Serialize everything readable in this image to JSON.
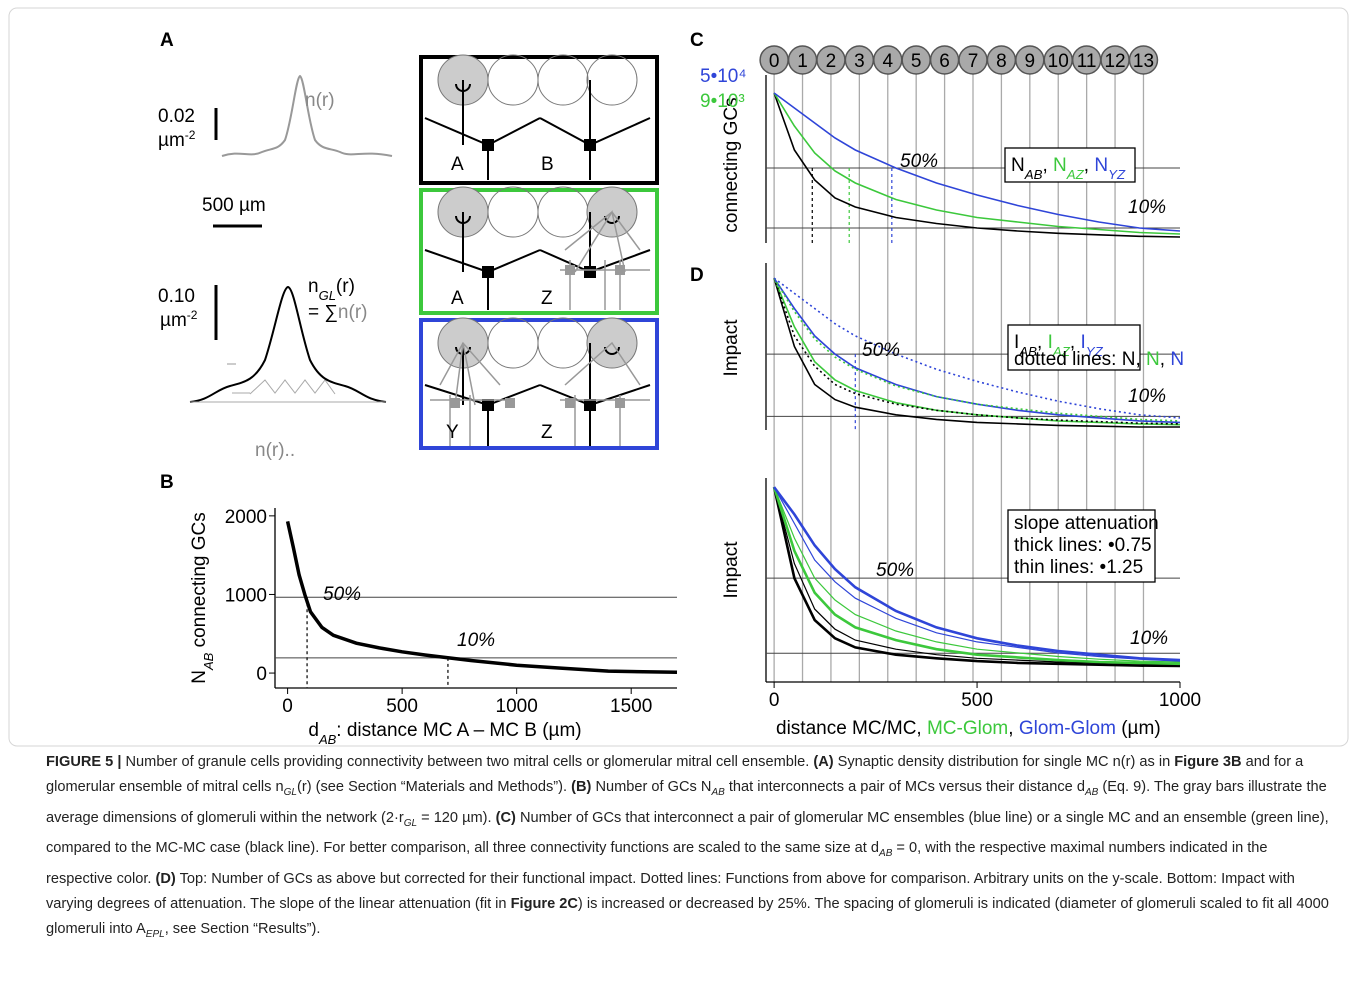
{
  "panel_a": {
    "label": "A",
    "scale_y1": "0.02",
    "unit1": "µm",
    "unit1_exp": "-2",
    "curve1": "n(r)",
    "scale_x": "500 µm",
    "scale_y2": "0.10",
    "unit2": "µm",
    "unit2_exp": "-2",
    "sum_lhs": "n",
    "sum_lhs_sub": "GL",
    "sum_lhs_end": "(r)",
    "sum_eq": "= ∑",
    "sum_rhs": "n(r)",
    "curve2": "n(r)..",
    "cells": [
      [
        "A",
        "B"
      ],
      [
        "A",
        "Z"
      ],
      [
        "Y",
        "Z"
      ]
    ]
  },
  "chart_data": [
    {
      "type": "line",
      "panel": "B",
      "x": [
        0,
        25,
        50,
        75,
        100,
        150,
        200,
        300,
        400,
        500,
        600,
        700,
        800,
        1000,
        1200,
        1400,
        1700
      ],
      "values": [
        1930,
        1600,
        1250,
        1000,
        780,
        580,
        480,
        380,
        320,
        270,
        230,
        195,
        160,
        100,
        60,
        25,
        10
      ],
      "color": "#000000",
      "width": 3.5,
      "xlim": [
        -55,
        1700
      ],
      "ylim": [
        -190,
        2100
      ],
      "xticks": [
        0,
        500,
        1000,
        1500
      ],
      "yticks": [
        0,
        1000,
        2000
      ],
      "ylabel": [
        {
          "text": "N"
        },
        {
          "text": "AB",
          "sub": true
        },
        {
          "text": " connecting GCs"
        }
      ],
      "xlabel": [
        {
          "text": "d"
        },
        {
          "text": "AB",
          "sub": true
        },
        {
          "text": ": distance MC A – MC B (µm)"
        }
      ],
      "annotations": [
        "50%",
        "10%"
      ],
      "hlines": [
        965,
        193
      ],
      "vlines": [
        85,
        700
      ],
      "vline_colors": [
        "#000000",
        "#000000"
      ]
    },
    {
      "type": "line",
      "panel": "C",
      "x": [
        0,
        50,
        100,
        150,
        200,
        300,
        400,
        500,
        600,
        700,
        800,
        900,
        1000
      ],
      "series": [
        {
          "name": "N",
          "sub": "AB",
          "color": "#000000",
          "values": [
            1,
            0.62,
            0.42,
            0.3,
            0.24,
            0.17,
            0.13,
            0.1,
            0.08,
            0.065,
            0.055,
            0.045,
            0.04
          ]
        },
        {
          "name": "N",
          "sub": "AZ",
          "color": "#3cc83c",
          "max_label": "9•10³",
          "values": [
            1,
            0.78,
            0.6,
            0.48,
            0.4,
            0.29,
            0.22,
            0.17,
            0.14,
            0.11,
            0.09,
            0.07,
            0.06
          ]
        },
        {
          "name": "N",
          "sub": "YZ",
          "color": "#2f45d8",
          "max_label": "5•10⁴",
          "values": [
            1,
            0.9,
            0.8,
            0.7,
            0.62,
            0.5,
            0.4,
            0.32,
            0.25,
            0.19,
            0.14,
            0.1,
            0.08
          ]
        }
      ],
      "legend_sep": ", ",
      "legend": "right",
      "xlim": [
        -20,
        1000
      ],
      "ylim": [
        0,
        1.12
      ],
      "ylabel": [
        {
          "text": "connecting GCs"
        }
      ],
      "annotations": [
        "50%",
        "10%"
      ],
      "hlines": [
        0.5,
        0.1
      ],
      "vlines": [
        94,
        185,
        290
      ],
      "vline_colors": [
        "#000000",
        "#3cc83c",
        "#2f45d8"
      ],
      "glomeruli": [
        0,
        1,
        2,
        3,
        4,
        5,
        6,
        7,
        8,
        9,
        10,
        11,
        12,
        13
      ],
      "glomerulus_spacing": 70
    },
    {
      "type": "line",
      "panel": "D",
      "x": [
        0,
        50,
        100,
        150,
        200,
        300,
        400,
        500,
        600,
        700,
        800,
        900,
        1000
      ],
      "series": [
        {
          "name": "I",
          "sub": "AB",
          "color": "#000000",
          "values": [
            1,
            0.55,
            0.3,
            0.2,
            0.15,
            0.1,
            0.07,
            0.05,
            0.04,
            0.03,
            0.025,
            0.02,
            0.02
          ]
        },
        {
          "name": "I",
          "sub": "AZ",
          "color": "#3cc83c",
          "values": [
            1,
            0.68,
            0.45,
            0.33,
            0.26,
            0.18,
            0.13,
            0.1,
            0.08,
            0.06,
            0.05,
            0.04,
            0.035
          ]
        },
        {
          "name": "I",
          "sub": "YZ",
          "color": "#2f45d8",
          "values": [
            1,
            0.8,
            0.62,
            0.5,
            0.41,
            0.3,
            0.22,
            0.17,
            0.13,
            0.1,
            0.08,
            0.06,
            0.05
          ]
        },
        {
          "name": "N",
          "color": "#000000",
          "dash": true,
          "values": [
            1,
            0.62,
            0.42,
            0.3,
            0.24,
            0.17,
            0.13,
            0.1,
            0.08,
            0.065,
            0.055,
            0.045,
            0.04
          ]
        },
        {
          "name": "N",
          "color": "#3cc83c",
          "dash": true,
          "values": [
            1,
            0.78,
            0.6,
            0.48,
            0.4,
            0.29,
            0.22,
            0.17,
            0.14,
            0.11,
            0.09,
            0.07,
            0.06
          ]
        },
        {
          "name": "N",
          "color": "#2f45d8",
          "dash": true,
          "values": [
            1,
            0.9,
            0.8,
            0.7,
            0.62,
            0.5,
            0.4,
            0.32,
            0.25,
            0.19,
            0.14,
            0.1,
            0.08
          ]
        }
      ],
      "legend_sep": ", ",
      "legend_note": "dotted lines: ",
      "legend": "right",
      "xlim": [
        -20,
        1000
      ],
      "ylim": [
        0,
        1.1
      ],
      "ylabel": [
        {
          "text": "Impact"
        }
      ],
      "annotations": [
        "50%",
        "10%"
      ],
      "hlines": [
        0.5,
        0.09
      ],
      "vlines": [
        200
      ],
      "vline_colors": [
        "#2f45d8"
      ]
    },
    {
      "type": "line",
      "x": [
        0,
        50,
        100,
        150,
        200,
        300,
        400,
        500,
        600,
        700,
        800,
        900,
        1000
      ],
      "series": [
        {
          "color": "#000000",
          "width": 2.6,
          "values": [
            1,
            0.5,
            0.27,
            0.17,
            0.12,
            0.08,
            0.06,
            0.045,
            0.035,
            0.03,
            0.025,
            0.02,
            0.018
          ]
        },
        {
          "color": "#000000",
          "width": 1.2,
          "values": [
            1,
            0.58,
            0.33,
            0.22,
            0.16,
            0.11,
            0.08,
            0.06,
            0.05,
            0.04,
            0.035,
            0.03,
            0.025
          ]
        },
        {
          "color": "#3cc83c",
          "width": 2.6,
          "values": [
            1,
            0.65,
            0.42,
            0.3,
            0.23,
            0.16,
            0.11,
            0.08,
            0.065,
            0.05,
            0.04,
            0.035,
            0.03
          ]
        },
        {
          "color": "#3cc83c",
          "width": 1.2,
          "values": [
            1,
            0.72,
            0.5,
            0.38,
            0.3,
            0.21,
            0.15,
            0.11,
            0.09,
            0.07,
            0.055,
            0.045,
            0.04
          ]
        },
        {
          "color": "#2f45d8",
          "width": 2.6,
          "values": [
            1,
            0.85,
            0.68,
            0.55,
            0.45,
            0.32,
            0.23,
            0.17,
            0.13,
            0.1,
            0.08,
            0.06,
            0.05
          ]
        },
        {
          "color": "#2f45d8",
          "width": 1.2,
          "values": [
            1,
            0.8,
            0.6,
            0.48,
            0.39,
            0.28,
            0.2,
            0.15,
            0.12,
            0.09,
            0.07,
            0.055,
            0.045
          ]
        }
      ],
      "legend_lines": [
        "slope attenuation",
        "thick lines: •0.75",
        "thin lines: •1.25"
      ],
      "legend": "right",
      "xlim": [
        -20,
        1000
      ],
      "ylim": [
        -0.07,
        1.05
      ],
      "xticks": [
        0,
        500,
        1000
      ],
      "ylabel": [
        {
          "text": "Impact"
        }
      ],
      "xlabel": [
        {
          "text": "distance MC/MC, ",
          "color": "#000000"
        },
        {
          "text": "MC-Glom",
          "color": "#3cc83c"
        },
        {
          "text": ", ",
          "color": "#000000"
        },
        {
          "text": "Glom-Glom",
          "color": "#2f45d8"
        },
        {
          "text": " (µm)",
          "color": "#000000"
        }
      ],
      "annotations": [
        "50%",
        "10%"
      ],
      "hlines": [
        0.5,
        0.088
      ]
    }
  ],
  "caption": [
    {
      "text": "FIGURE 5 |",
      "bold": true
    },
    {
      "text": " Number of granule cells providing connectivity between two mitral cells or glomerular mitral cell ensemble. "
    },
    {
      "text": "(A)",
      "bold": true
    },
    {
      "text": " Synaptic density distribution for single MC n(r) as in "
    },
    {
      "text": "Figure 3B",
      "bold": true
    },
    {
      "text": " and for a glomerular ensemble of mitral cells n"
    },
    {
      "text": "GL",
      "sub": true
    },
    {
      "text": "(r) (see Section “Materials and Methods”). "
    },
    {
      "text": "(B)",
      "bold": true
    },
    {
      "text": " Number of GCs N"
    },
    {
      "text": "AB",
      "sub": true
    },
    {
      "text": " that interconnects a pair of MCs versus their distance d"
    },
    {
      "text": "AB",
      "sub": true
    },
    {
      "text": " (Eq. 9). The gray bars illustrate the average dimensions of glomeruli within the network (2·r"
    },
    {
      "text": "GL",
      "sub": true
    },
    {
      "text": " = 120 µm). "
    },
    {
      "text": "(C)",
      "bold": true
    },
    {
      "text": " Number of GCs that interconnect a pair of glomerular MC ensembles (blue line) or a single MC and an ensemble (green line), compared to the MC-MC case (black line). For better comparison, all three connectivity functions are scaled to the same size at d"
    },
    {
      "text": "AB",
      "sub": true
    },
    {
      "text": " = 0, with the respective maximal numbers indicated in the respective color. "
    },
    {
      "text": "(D)",
      "bold": true
    },
    {
      "text": " Top: Number of GCs as above but corrected for their functional impact. Dotted lines: Functions from above for comparison. Arbitrary units on the y-scale. Bottom: Impact with varying degrees of attenuation. The slope of the linear attenuation (fit in "
    },
    {
      "text": "Figure 2C",
      "bold": true
    },
    {
      "text": ") is increased or decreased by 25%. The spacing of glomeruli is indicated (diameter of glomeruli scaled to fit all 4000 glomeruli into A"
    },
    {
      "text": "EPL",
      "sub": true
    },
    {
      "text": ", see Section “Results”)."
    }
  ]
}
